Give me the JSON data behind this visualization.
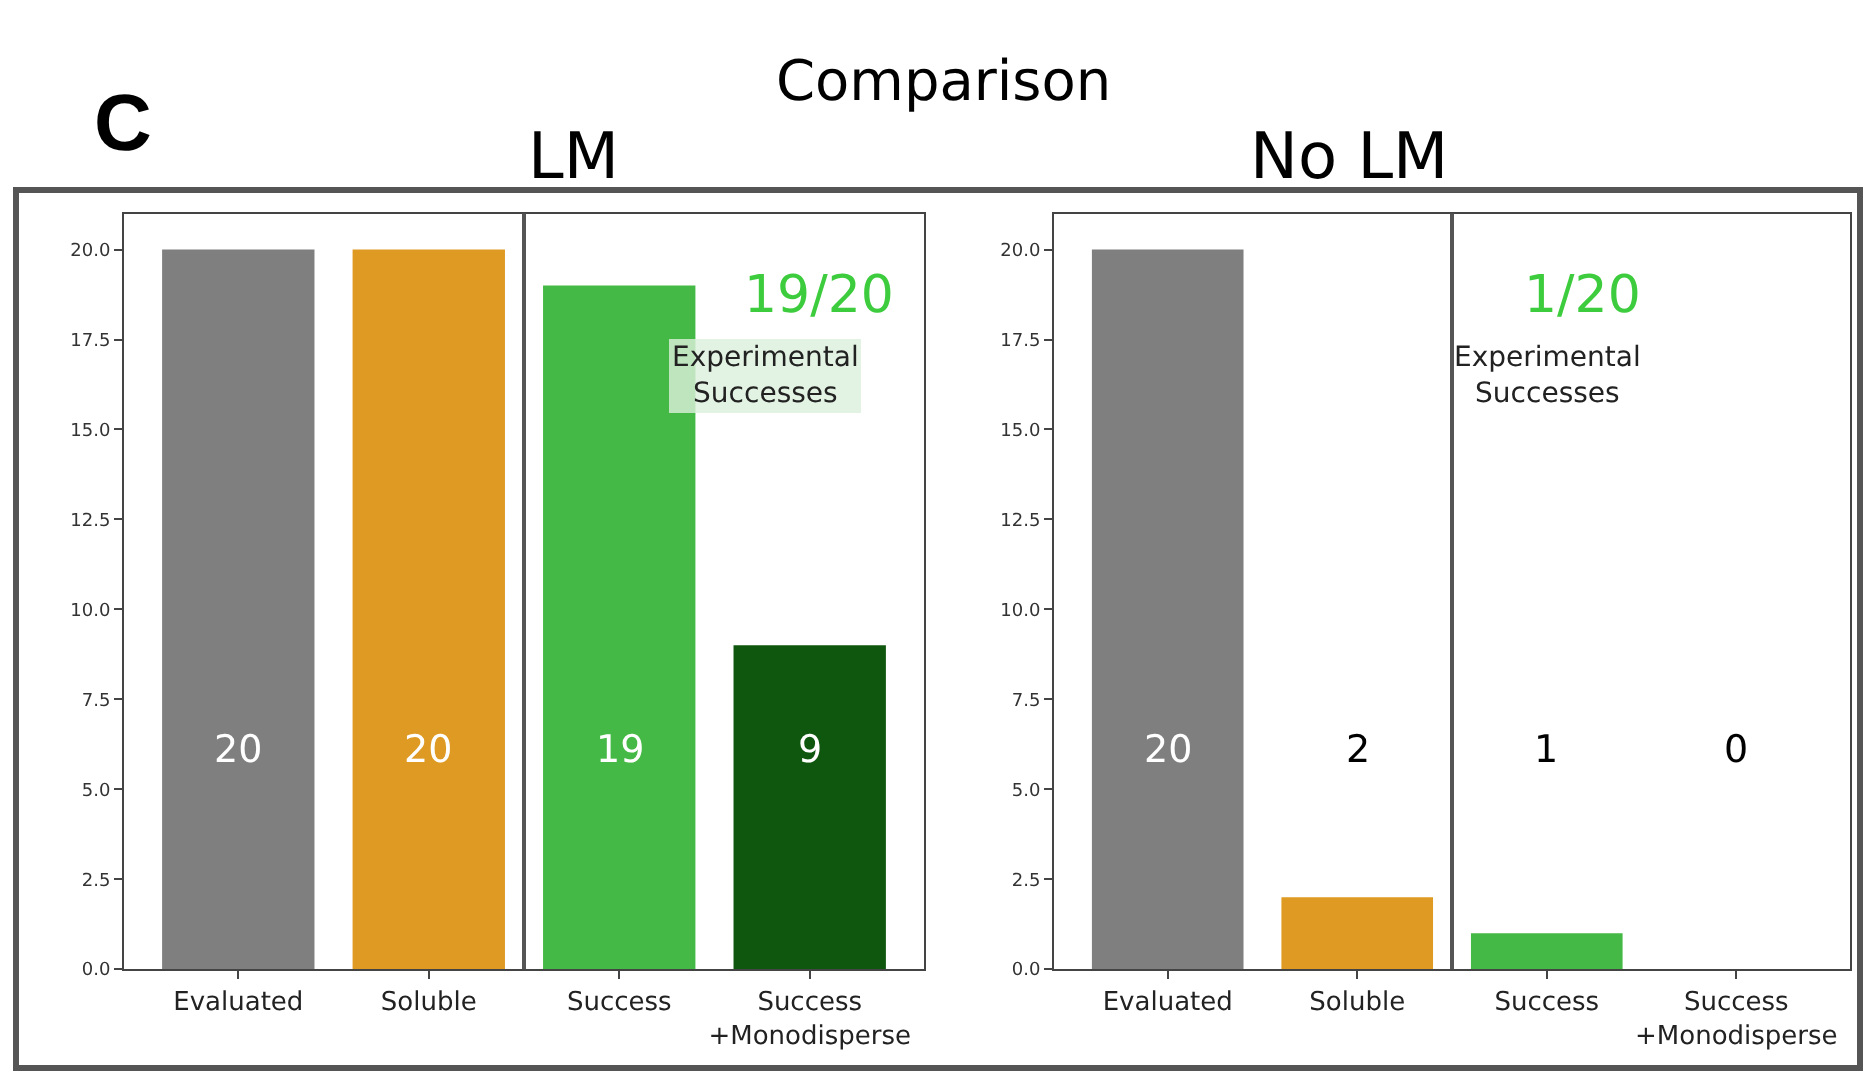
{
  "chart_data": [
    {
      "type": "bar",
      "title": "LM",
      "categories": [
        "Evaluated",
        "Soluble",
        "Success",
        "Success\n+Monodisperse"
      ],
      "values": [
        20,
        20,
        19,
        9
      ],
      "colors": [
        "#7f7f7f",
        "#de9a22",
        "#45b945",
        "#0f560f"
      ],
      "data_labels": true,
      "ylim": [
        0,
        21
      ],
      "yticks": [
        {
          "value": 0,
          "label": "0.0"
        },
        {
          "value": 2.5,
          "label": "2.5"
        },
        {
          "value": 5,
          "label": "5.0"
        },
        {
          "value": 7.5,
          "label": "7.5"
        },
        {
          "value": 10,
          "label": "10.0"
        },
        {
          "value": 12.5,
          "label": "12.5"
        },
        {
          "value": 15,
          "label": "15.0"
        },
        {
          "value": 17.5,
          "label": "17.5"
        },
        {
          "value": 20,
          "label": "20.0"
        }
      ],
      "annotations": [
        "C",
        "Comparison",
        "19/20",
        "Experimental\nSuccesses"
      ]
    },
    {
      "type": "bar",
      "title": "No LM",
      "categories": [
        "Evaluated",
        "Soluble",
        "Success",
        "Success\n+Monodisperse"
      ],
      "values": [
        20,
        2,
        1,
        0
      ],
      "value_labels": [
        "20",
        null,
        null,
        null
      ],
      "colors": [
        "#7f7f7f",
        "#de9a22",
        "#45b945",
        "#0f560f"
      ],
      "ylim": [
        0,
        21
      ],
      "yticks": [
        {
          "value": 0,
          "label": "0.0"
        },
        {
          "value": 2.5,
          "label": "2.5"
        },
        {
          "value": 5,
          "label": "5.0"
        },
        {
          "value": 7.5,
          "label": "7.5"
        },
        {
          "value": 10,
          "label": "10.0"
        },
        {
          "value": 12.5,
          "label": "12.5"
        },
        {
          "value": 15,
          "label": "15.0"
        },
        {
          "value": 17.5,
          "label": "17.5"
        },
        {
          "value": 20,
          "label": "20.0"
        }
      ],
      "annotations": [
        "1/20",
        "Experimental\nSuccesses",
        "2",
        "1",
        "0"
      ]
    }
  ]
}
